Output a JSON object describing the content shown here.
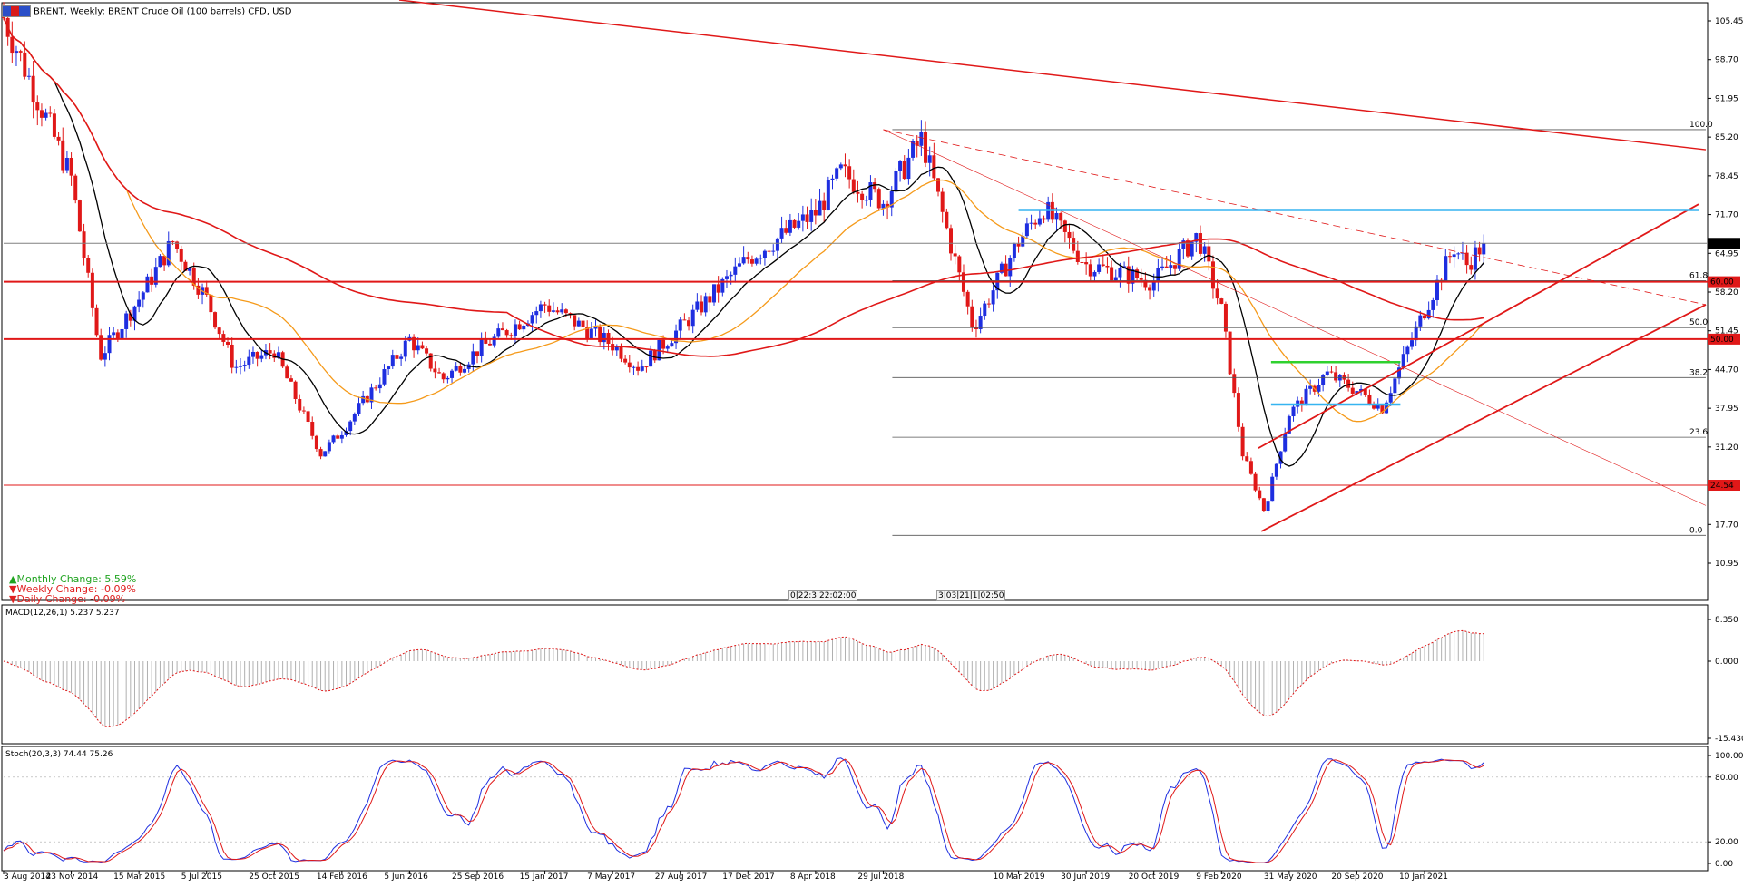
{
  "header": {
    "title": "BRENT, Weekly:  BRENT Crude Oil (100 barrels) CFD, USD",
    "icon": "chart-icon"
  },
  "stats": [
    {
      "arrow": "▲",
      "label": "Monthly Change: 5.59%",
      "color": "#1fa31f"
    },
    {
      "arrow": "▼",
      "label": "Weekly Change: -0.09%",
      "color": "#e02020"
    },
    {
      "arrow": "▼",
      "label": "Daily Change: -0.09%",
      "color": "#e02020"
    }
  ],
  "markers": [
    "0|22:3|22:02:00",
    "3|03|21|1|02:50"
  ],
  "colors": {
    "bull": "#1e2ee0",
    "bear": "#e01818",
    "sma_black": "#000000",
    "sma_orange": "#f59a1a",
    "sma_red": "#e01818",
    "trend": "#e01818",
    "cyan": "#36b4f0",
    "green": "#2fd12f"
  },
  "chart_data": [
    {
      "type": "candlestick",
      "title": "BRENT, Weekly:  BRENT Crude Oil (100 barrels) CFD, USD",
      "ylim": [
        10.95,
        108.0
      ],
      "y_ticks": [
        "105.45",
        "98.70",
        "91.95",
        "85.20",
        "78.45",
        "71.70",
        "64.95",
        "58.20",
        "51.45",
        "44.70",
        "37.95",
        "31.20",
        "24.45",
        "17.70",
        "10.95"
      ],
      "x_ticks": [
        "3 Aug 2014",
        "23 Nov 2014",
        "15 Mar 2015",
        "5 Jul 2015",
        "25 Oct 2015",
        "14 Feb 2016",
        "5 Jun 2016",
        "25 Sep 2016",
        "15 Jan 2017",
        "7 May 2017",
        "27 Aug 2017",
        "17 Dec 2017",
        "8 Apr 2018",
        "29 Jul 2018",
        "10 Mar 2019",
        "30 Jun 2019",
        "20 Oct 2019",
        "9 Feb 2020",
        "31 May 2020",
        "20 Sep 2020",
        "10 Jan 2021"
      ],
      "price_labels": [
        {
          "text": "66.69",
          "value": 66.69,
          "bg": "#000000",
          "color": "#ffffff"
        },
        {
          "text": "60.00",
          "value": 60.0,
          "bg": "#e01818",
          "color": "#ffffff"
        },
        {
          "text": "50.00",
          "value": 50.0,
          "bg": "#e01818",
          "color": "#ffffff"
        },
        {
          "text": "24.54",
          "value": 24.54,
          "bg": "#e01818",
          "color": "#ffffff"
        }
      ],
      "horizontal_levels": [
        {
          "value": 60.0,
          "color": "#e01818",
          "width": 2
        },
        {
          "value": 50.0,
          "color": "#e01818",
          "width": 2
        },
        {
          "value": 24.54,
          "color": "#e01818",
          "width": 1
        },
        {
          "value": 66.69,
          "color": "#808080",
          "width": 1
        }
      ],
      "fibonacci": {
        "start_date": "29 Jul 2018",
        "levels": [
          {
            "label": "100.0",
            "value": 86.5
          },
          {
            "label": "61.8",
            "value": 60.2
          },
          {
            "label": "50.0",
            "value": 52.0
          },
          {
            "label": "38.2",
            "value": 43.3
          },
          {
            "label": "23.6",
            "value": 32.9
          },
          {
            "label": "0.0",
            "value": 15.8
          }
        ]
      },
      "series": [
        {
          "name": "",
          "type": "candles",
          "anchors": [
            [
              "3 Aug 2014",
              106
            ],
            [
              "23 Nov 2014",
              78
            ],
            [
              "10 Jan 2015",
              47
            ],
            [
              "15 Mar 2015",
              57
            ],
            [
              "10 May 2015",
              67
            ],
            [
              "5 Jul 2015",
              57
            ],
            [
              "20 Aug 2015",
              45
            ],
            [
              "25 Oct 2015",
              48
            ],
            [
              "10 Jan 2016",
              30
            ],
            [
              "14 Feb 2016",
              34
            ],
            [
              "5 Jun 2016",
              50
            ],
            [
              "30 Jul 2016",
              43
            ],
            [
              "25 Sep 2016",
              48
            ],
            [
              "15 Jan 2017",
              56
            ],
            [
              "7 May 2017",
              49
            ],
            [
              "20 Jun 2017",
              45
            ],
            [
              "27 Aug 2017",
              52
            ],
            [
              "17 Dec 2017",
              64
            ],
            [
              "8 Apr 2018",
              72
            ],
            [
              "20 May 2018",
              79
            ],
            [
              "29 Jul 2018",
              74
            ],
            [
              "1 Oct 2018",
              85
            ],
            [
              "25 Dec 2018",
              52
            ],
            [
              "10 Mar 2019",
              67
            ],
            [
              "20 Apr 2019",
              73
            ],
            [
              "30 Jun 2019",
              63
            ],
            [
              "20 Oct 2019",
              60
            ],
            [
              "1 Jan 2020",
              68
            ],
            [
              "9 Feb 2020",
              55
            ],
            [
              "15 Mar 2020",
              30
            ],
            [
              "20 Apr 2020",
              20
            ],
            [
              "31 May 2020",
              37
            ],
            [
              "1 Aug 2020",
              44
            ],
            [
              "20 Sep 2020",
              41
            ],
            [
              "1 Nov 2020",
              38
            ],
            [
              "10 Jan 2021",
              55
            ],
            [
              "28 Feb 2021",
              66
            ],
            [
              "21 Mar 2021",
              63
            ],
            [
              "18 Apr 2021",
              66.69
            ]
          ]
        },
        {
          "name": "",
          "type": "sma",
          "color": "#000000"
        },
        {
          "name": "",
          "type": "sma",
          "color": "#f59a1a"
        },
        {
          "name": "",
          "type": "sma",
          "color": "#e01818"
        }
      ],
      "annotations": [
        "red downtrend line",
        "dashed trend line",
        "rising channel",
        "cyan resistance band ~72.5",
        "green box ~46",
        "cyan box ~38.5"
      ]
    },
    {
      "type": "histogram",
      "title": "MACD(12,26,1) 5.237 5.237",
      "ylim": [
        -15.43,
        8.35
      ],
      "y_ticks": [
        "8.350",
        "0.000",
        "-15.430"
      ]
    },
    {
      "type": "line",
      "title": "Stoch(20,3,3) 74.44 75.26",
      "ylim": [
        0,
        100
      ],
      "y_ticks": [
        "100.00",
        "80.00",
        "20.00",
        "0.00"
      ],
      "series": [
        {
          "name": "",
          "color": "#1e2ee0"
        },
        {
          "name": "",
          "color": "#e01818"
        }
      ]
    }
  ]
}
